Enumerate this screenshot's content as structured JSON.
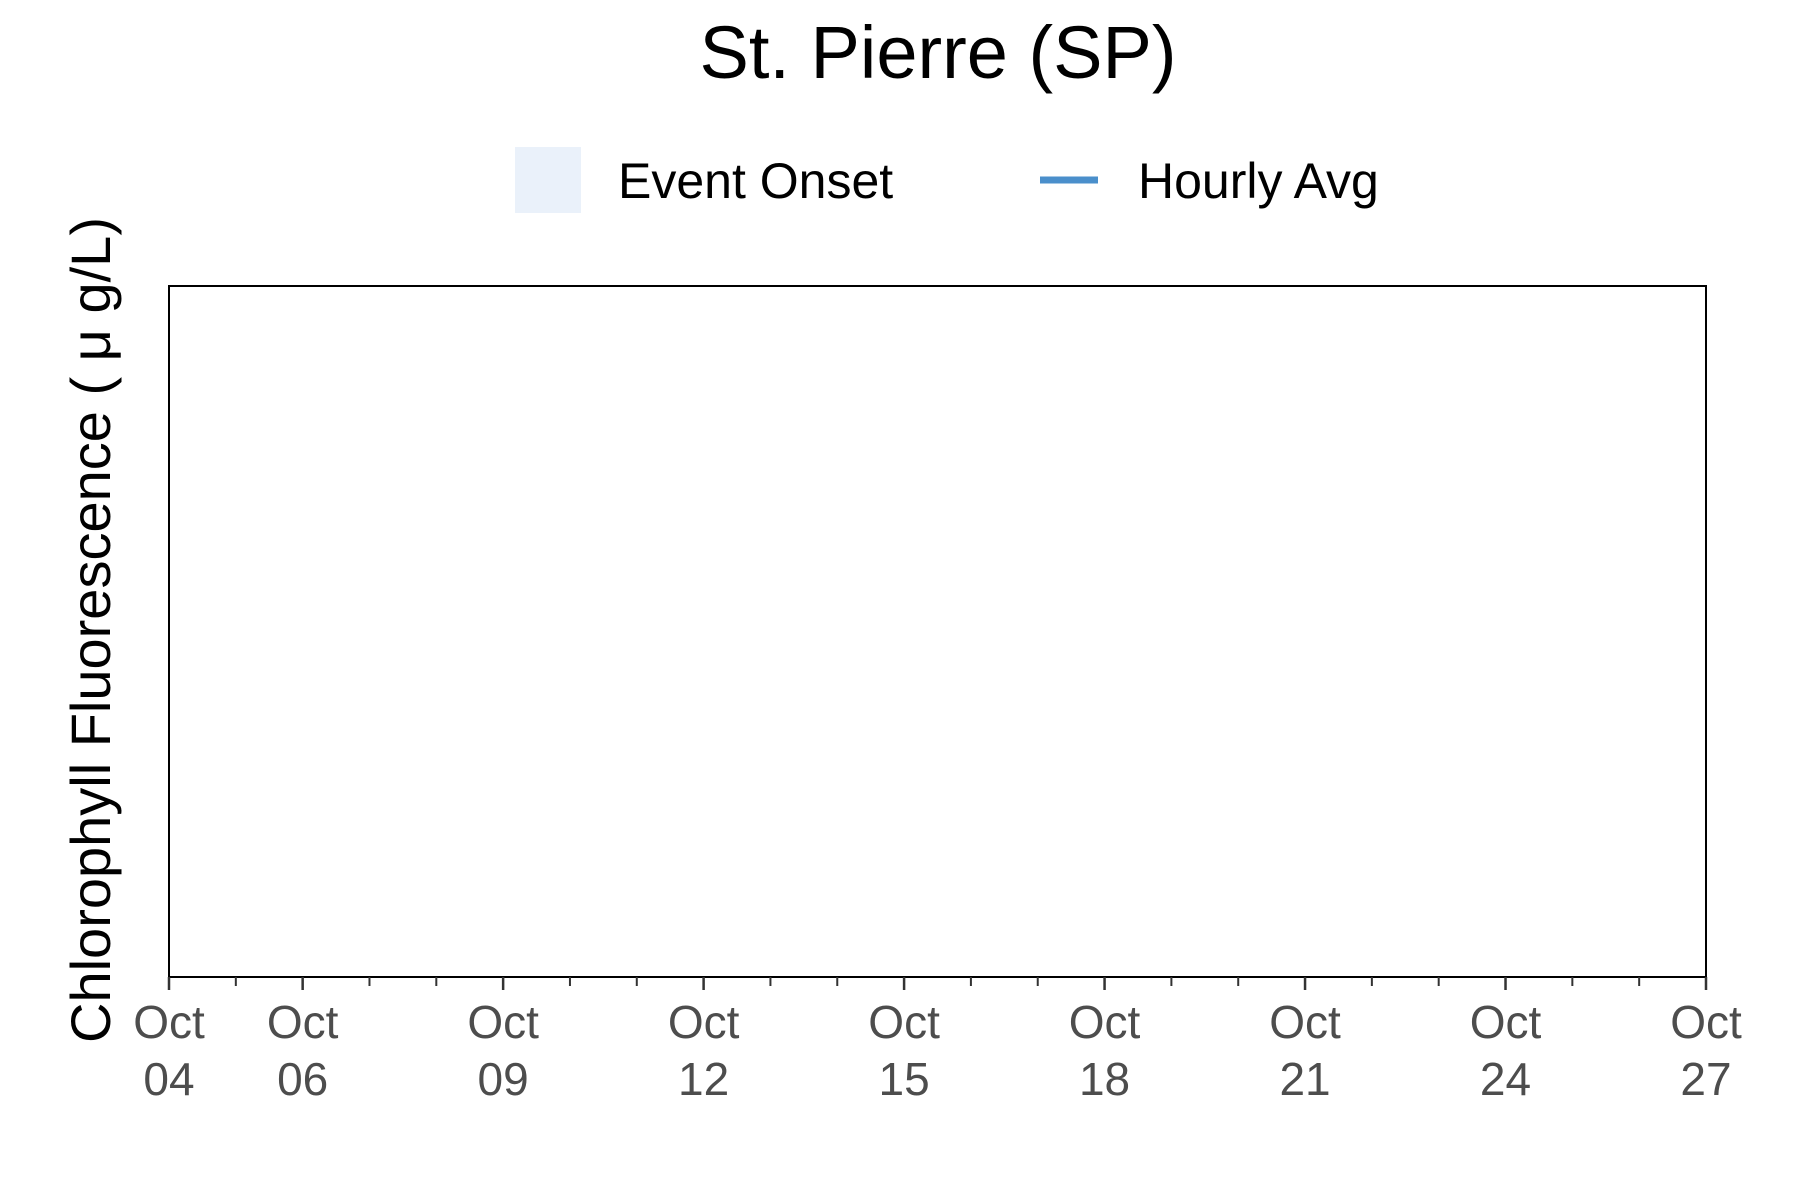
{
  "chart_data": {
    "type": "line",
    "title": "St. Pierre (SP)",
    "ylabel": "Chlorophyll Fluorescence ( μ g/L)",
    "xlabel": "",
    "legend": {
      "placement": "top",
      "entries": [
        {
          "name": "Event Onset",
          "kind": "fill",
          "color": "#eaf1fa"
        },
        {
          "name": "Hourly Avg",
          "kind": "line",
          "color": "#4a8fcb"
        }
      ]
    },
    "x_range": [
      "Oct 04",
      "Oct 27"
    ],
    "x_ticks": [
      {
        "day": 4,
        "month": "Oct",
        "label": "04"
      },
      {
        "day": 6,
        "month": "Oct",
        "label": "06"
      },
      {
        "day": 9,
        "month": "Oct",
        "label": "09"
      },
      {
        "day": 12,
        "month": "Oct",
        "label": "12"
      },
      {
        "day": 15,
        "month": "Oct",
        "label": "15"
      },
      {
        "day": 18,
        "month": "Oct",
        "label": "18"
      },
      {
        "day": 21,
        "month": "Oct",
        "label": "21"
      },
      {
        "day": 24,
        "month": "Oct",
        "label": "24"
      },
      {
        "day": 27,
        "month": "Oct",
        "label": "27"
      }
    ],
    "minor_tick_days": [
      5,
      7,
      8,
      10,
      11,
      13,
      14,
      16,
      17,
      19,
      20,
      22,
      23,
      25,
      26
    ],
    "series": [
      {
        "name": "Hourly Avg",
        "x": [],
        "values": []
      }
    ],
    "grid": false
  }
}
